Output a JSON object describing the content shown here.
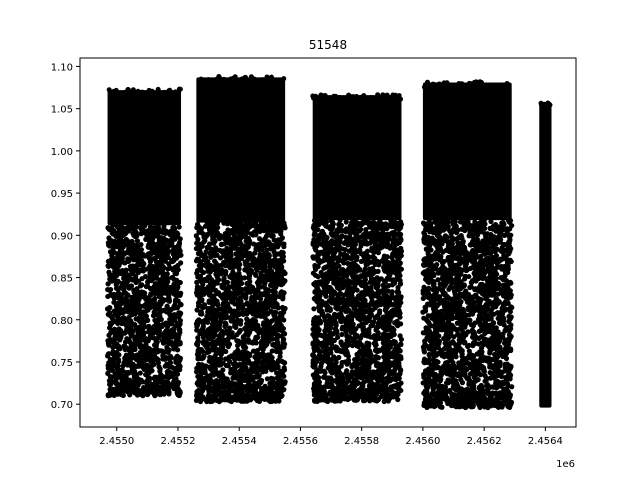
{
  "chart_data": {
    "type": "scatter",
    "title": "51548",
    "xlabel": "",
    "ylabel": "",
    "x_offset_label": "1e6",
    "xlim": [
      2.45488,
      2.4565
    ],
    "ylim": [
      0.673,
      1.11
    ],
    "x_ticks": [
      2.455,
      2.4552,
      2.4554,
      2.4556,
      2.4558,
      2.456,
      2.4562,
      2.4564
    ],
    "x_tick_labels": [
      "2.4550",
      "2.4552",
      "2.4554",
      "2.4556",
      "2.4558",
      "2.4560",
      "2.4562",
      "2.4564"
    ],
    "y_ticks": [
      0.7,
      0.75,
      0.8,
      0.85,
      0.9,
      0.95,
      1.0,
      1.05,
      1.1
    ],
    "y_tick_labels": [
      "0.70",
      "0.75",
      "0.80",
      "0.85",
      "0.90",
      "0.95",
      "1.00",
      "1.05",
      "1.10"
    ],
    "grid": false,
    "marker_color": "#000000",
    "series": [
      {
        "segments": [
          {
            "x_start": 2.45497,
            "x_end": 2.45521,
            "y_dense_min": 0.912,
            "y_dense_max": 1.072,
            "y_sparse_min": 0.71,
            "y_sparse_max": 0.912
          },
          {
            "x_start": 2.45526,
            "x_end": 2.45555,
            "y_dense_min": 0.915,
            "y_dense_max": 1.087,
            "y_sparse_min": 0.703,
            "y_sparse_max": 0.915
          },
          {
            "x_start": 2.45564,
            "x_end": 2.45593,
            "y_dense_min": 0.918,
            "y_dense_max": 1.066,
            "y_sparse_min": 0.703,
            "y_sparse_max": 0.918
          },
          {
            "x_start": 2.456,
            "x_end": 2.45629,
            "y_dense_min": 0.918,
            "y_dense_max": 1.081,
            "y_sparse_min": 0.696,
            "y_sparse_max": 0.918
          },
          {
            "x_start": 2.45638,
            "x_end": 2.45642,
            "y_dense_min": 0.696,
            "y_dense_max": 1.058,
            "y_sparse_min": 0.696,
            "y_sparse_max": 0.696
          }
        ]
      }
    ]
  }
}
